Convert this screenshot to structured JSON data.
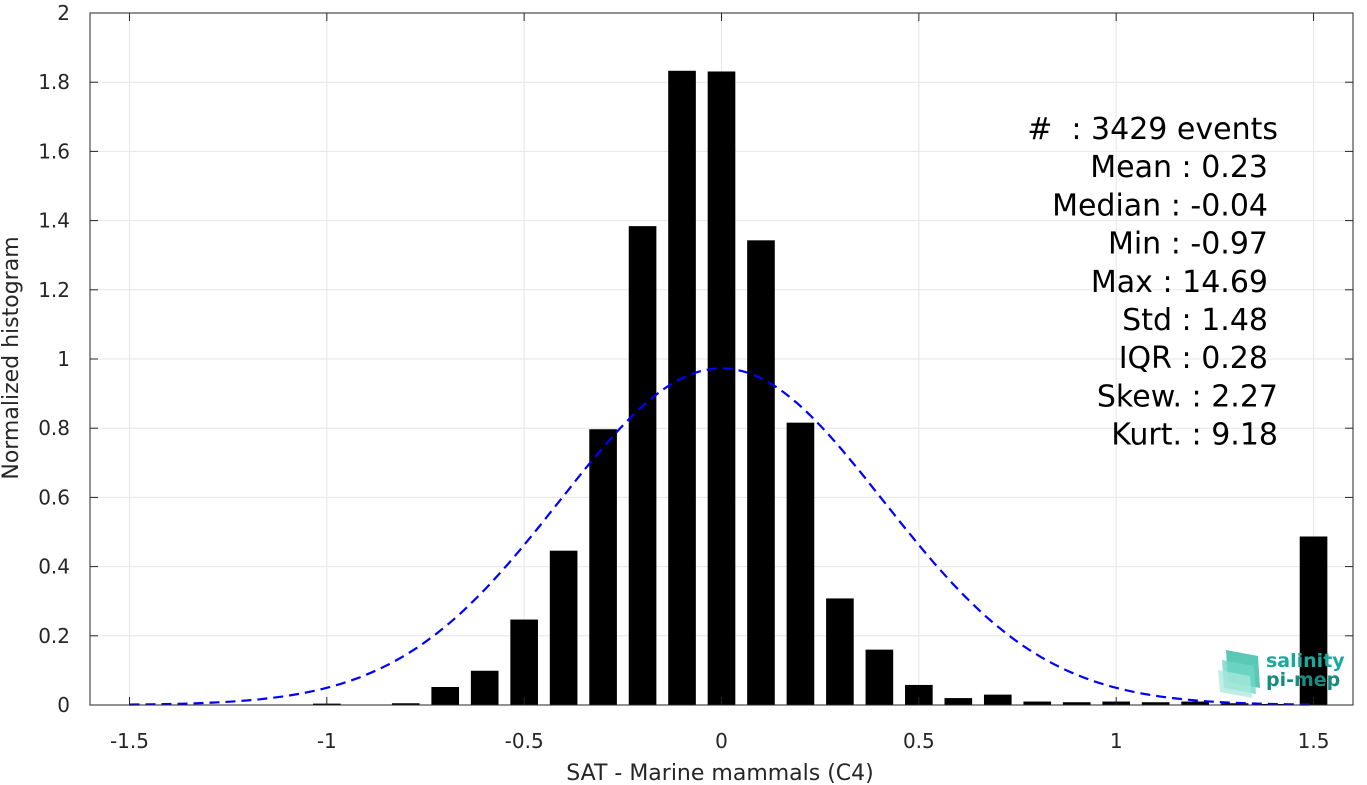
{
  "chart_data": {
    "type": "bar",
    "xlabel": "SAT - Marine mammals (C4)",
    "ylabel": "Normalized histogram",
    "xlim": [
      -1.6,
      1.6
    ],
    "ylim": [
      0,
      2
    ],
    "xticks": [
      -1.5,
      -1,
      -0.5,
      0,
      0.5,
      1,
      1.5
    ],
    "xtick_labels": [
      "-1.5",
      "-1",
      "-0.5",
      "0",
      "0.5",
      "1",
      "1.5"
    ],
    "yticks": [
      0,
      0.2,
      0.4,
      0.6,
      0.8,
      1,
      1.2,
      1.4,
      1.6,
      1.8,
      2
    ],
    "ytick_labels": [
      "0",
      "0.2",
      "0.4",
      "0.6",
      "0.8",
      "1",
      "1.2",
      "1.4",
      "1.6",
      "1.8",
      "2"
    ],
    "grid": true,
    "bar_color": "#000000",
    "bin_width": 0.1,
    "bars": [
      {
        "x": -1.5,
        "y": 0.0
      },
      {
        "x": -1.4,
        "y": 0.0
      },
      {
        "x": -1.3,
        "y": 0.0
      },
      {
        "x": -1.2,
        "y": 0.0
      },
      {
        "x": -1.1,
        "y": 0.0
      },
      {
        "x": -1.0,
        "y": 0.004
      },
      {
        "x": -0.9,
        "y": 0.0
      },
      {
        "x": -0.8,
        "y": 0.005
      },
      {
        "x": -0.7,
        "y": 0.052
      },
      {
        "x": -0.6,
        "y": 0.099
      },
      {
        "x": -0.5,
        "y": 0.247
      },
      {
        "x": -0.4,
        "y": 0.446
      },
      {
        "x": -0.3,
        "y": 0.797
      },
      {
        "x": -0.2,
        "y": 1.384
      },
      {
        "x": -0.1,
        "y": 1.833
      },
      {
        "x": 0.0,
        "y": 1.831
      },
      {
        "x": 0.1,
        "y": 1.343
      },
      {
        "x": 0.2,
        "y": 0.816
      },
      {
        "x": 0.3,
        "y": 0.308
      },
      {
        "x": 0.4,
        "y": 0.16
      },
      {
        "x": 0.5,
        "y": 0.058
      },
      {
        "x": 0.6,
        "y": 0.02
      },
      {
        "x": 0.7,
        "y": 0.03
      },
      {
        "x": 0.8,
        "y": 0.01
      },
      {
        "x": 0.9,
        "y": 0.008
      },
      {
        "x": 1.0,
        "y": 0.01
      },
      {
        "x": 1.1,
        "y": 0.008
      },
      {
        "x": 1.2,
        "y": 0.01
      },
      {
        "x": 1.3,
        "y": 0.005
      },
      {
        "x": 1.4,
        "y": 0.003
      },
      {
        "x": 1.5,
        "y": 0.487
      }
    ],
    "fit_curve": {
      "style": "dashed",
      "color": "#0000ff",
      "mean": 0.0,
      "std": 0.41,
      "peak": 0.973,
      "x_range": [
        -1.5,
        1.5
      ]
    },
    "stats_lines": [
      "#  : 3429 events",
      "Mean : 0.23",
      "Median : -0.04",
      "Min : -0.97",
      "Max : 14.69",
      "Std : 1.48",
      "IQR : 0.28",
      "Skew. : 2.27",
      "Kurt. : 9.18"
    ]
  },
  "logo": {
    "line1": "salinity",
    "line2": "pi-mep",
    "color": "#1aa89a"
  }
}
